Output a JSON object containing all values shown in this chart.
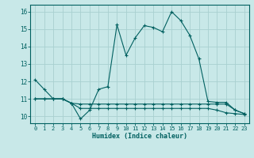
{
  "xlabel": "Humidex (Indice chaleur)",
  "bg_color": "#c8e8e8",
  "line_color": "#006060",
  "grid_color": "#a8d0d0",
  "xlim": [
    -0.5,
    23.5
  ],
  "ylim": [
    9.6,
    16.4
  ],
  "xticks": [
    0,
    1,
    2,
    3,
    4,
    5,
    6,
    7,
    8,
    9,
    10,
    11,
    12,
    13,
    14,
    15,
    16,
    17,
    18,
    19,
    20,
    21,
    22,
    23
  ],
  "yticks": [
    10,
    11,
    12,
    13,
    14,
    15,
    16
  ],
  "series1_y": [
    12.1,
    11.55,
    11.0,
    11.0,
    10.75,
    9.85,
    10.35,
    11.55,
    11.7,
    15.25,
    13.5,
    14.5,
    15.2,
    15.1,
    14.85,
    16.0,
    15.5,
    14.65,
    13.3,
    10.85,
    10.8,
    10.8,
    10.35,
    10.15
  ],
  "series2_y": [
    11.0,
    11.0,
    11.0,
    11.0,
    10.75,
    10.7,
    10.7,
    10.7,
    10.7,
    10.7,
    10.7,
    10.7,
    10.7,
    10.7,
    10.7,
    10.7,
    10.7,
    10.7,
    10.7,
    10.7,
    10.7,
    10.7,
    10.35,
    10.15
  ],
  "series3_y": [
    11.0,
    11.0,
    11.0,
    11.0,
    10.75,
    10.45,
    10.45,
    10.45,
    10.45,
    10.45,
    10.45,
    10.45,
    10.45,
    10.45,
    10.45,
    10.45,
    10.45,
    10.45,
    10.45,
    10.45,
    10.35,
    10.2,
    10.15,
    10.1
  ]
}
